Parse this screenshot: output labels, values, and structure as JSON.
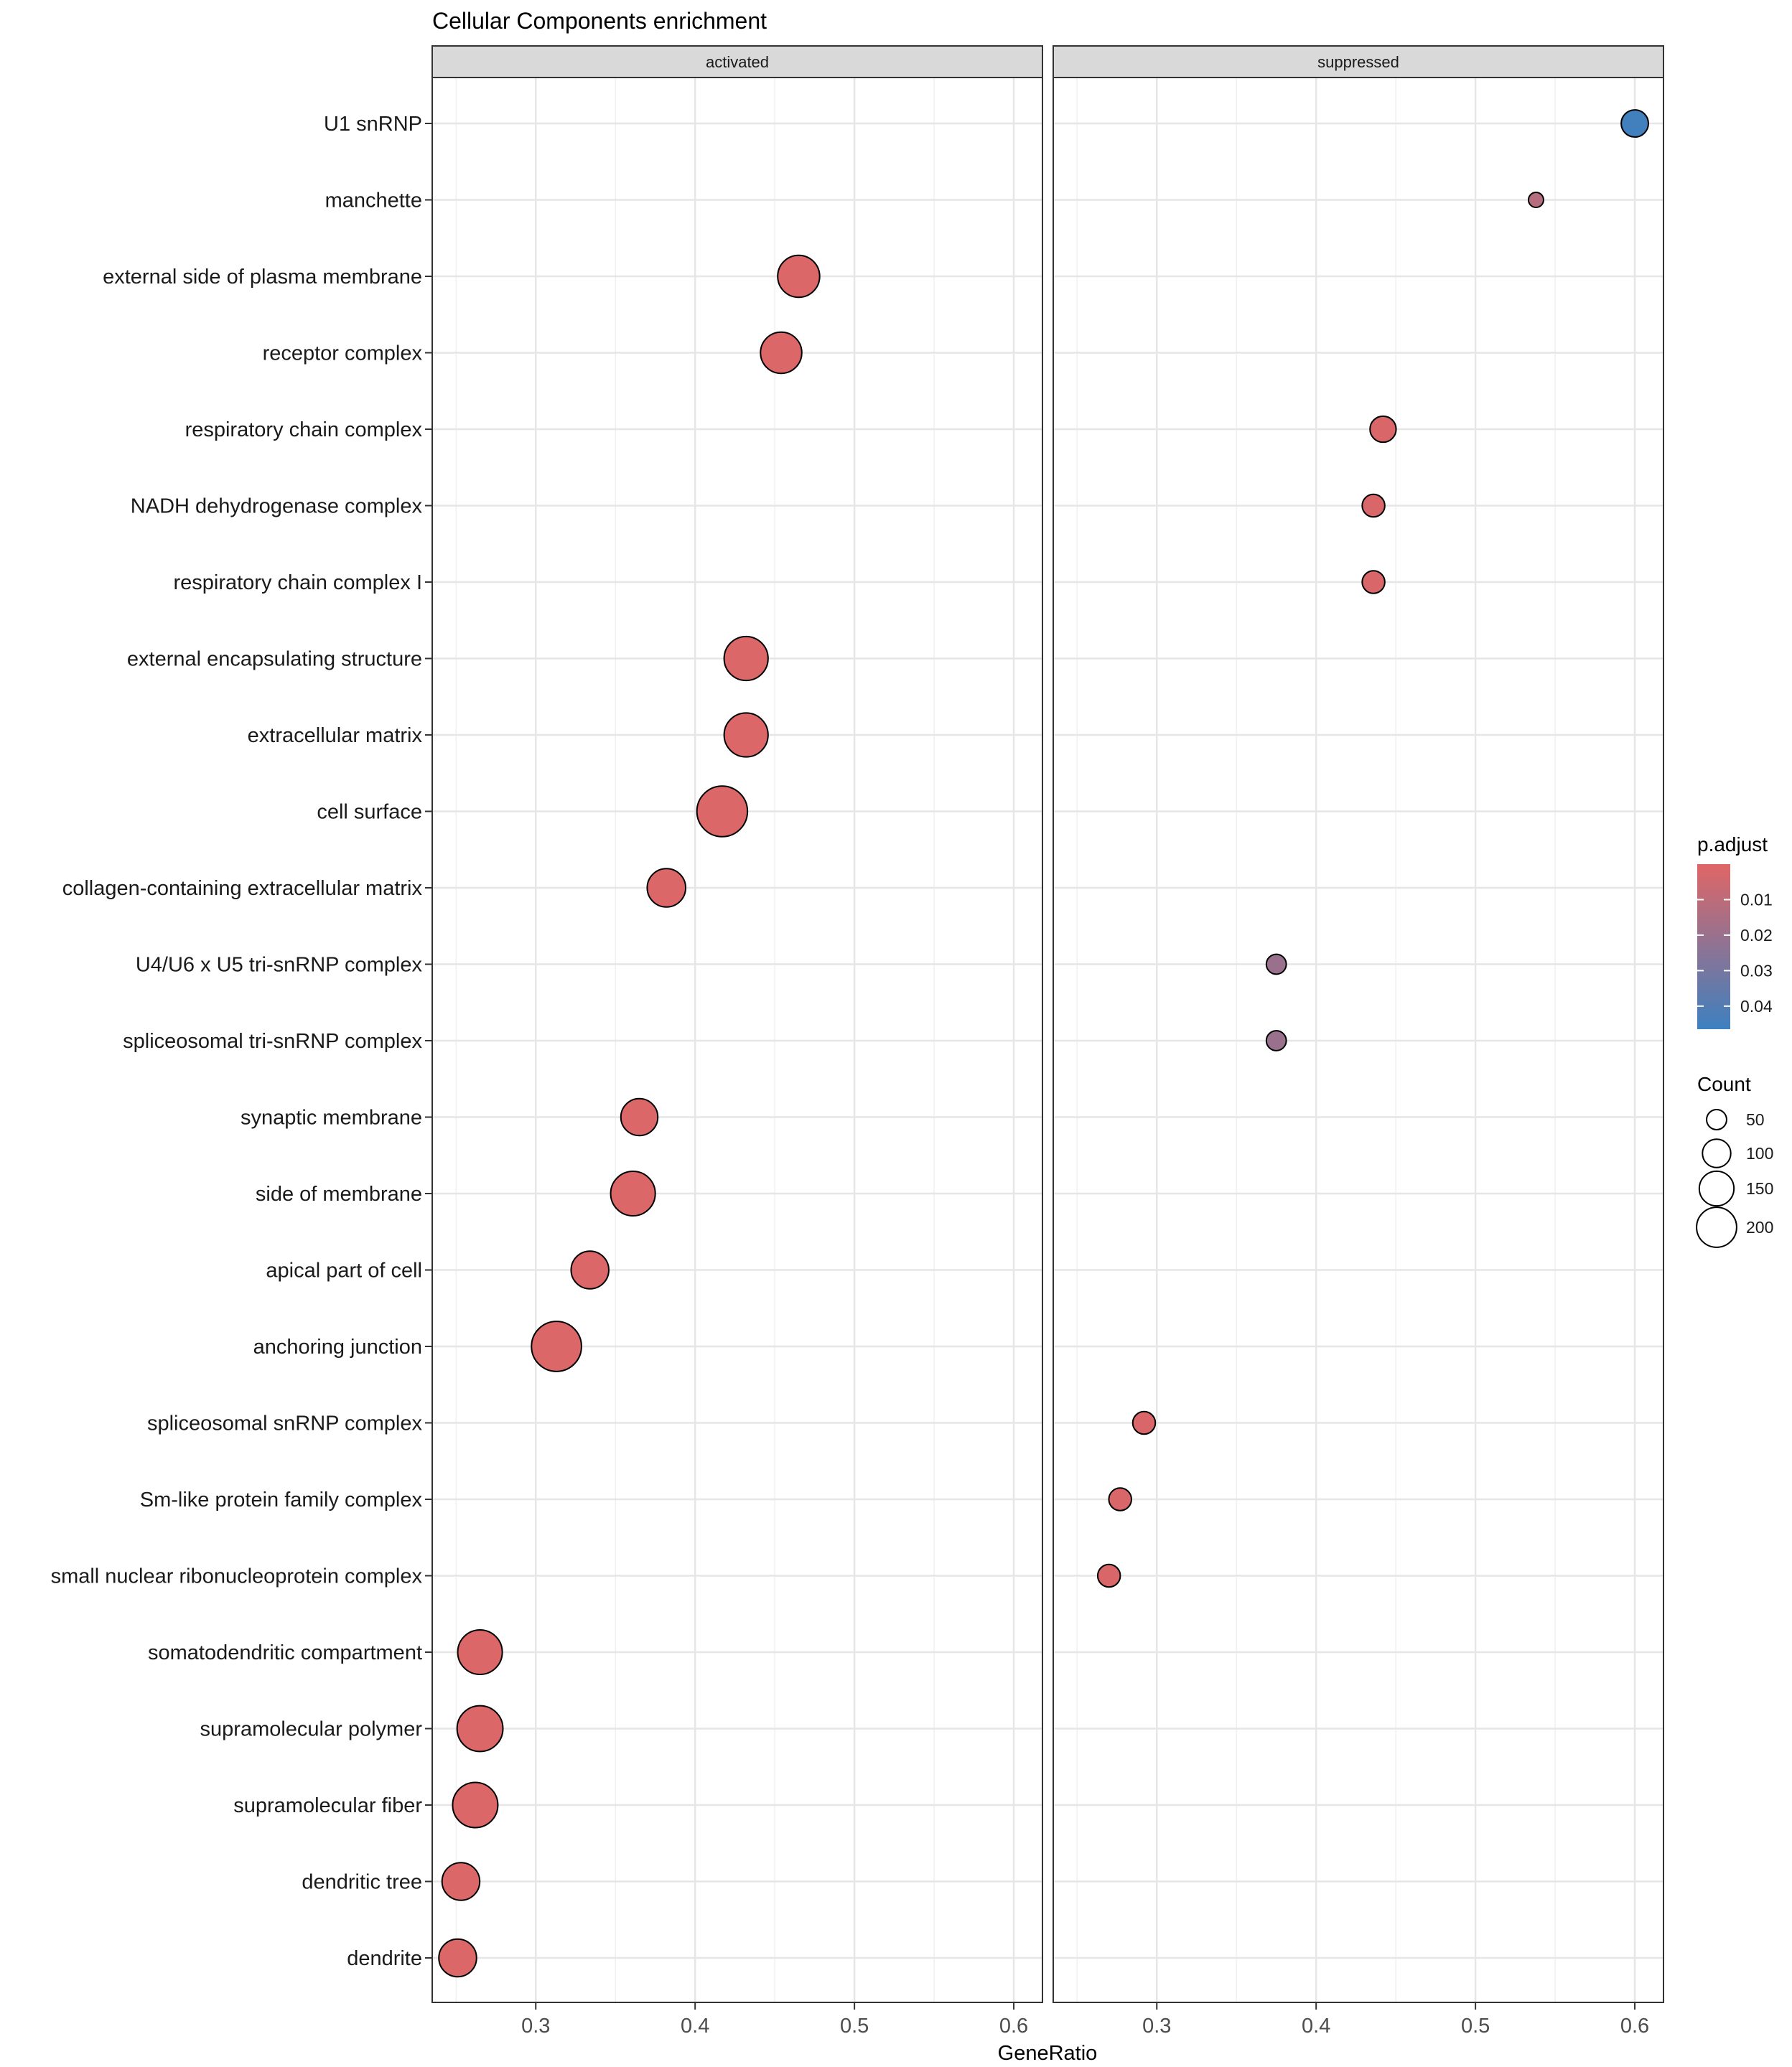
{
  "chart_data": {
    "type": "scatter",
    "title": "Cellular Components enrichment",
    "xlabel": "GeneRatio",
    "ylabel": "",
    "xlim": [
      0.235,
      0.618
    ],
    "x_ticks": [
      0.3,
      0.4,
      0.5,
      0.6
    ],
    "x_tick_labels": [
      "0.3",
      "0.4",
      "0.5",
      "0.6"
    ],
    "grid": true,
    "facets": [
      "activated",
      "suppressed"
    ],
    "categories": [
      "U1 snRNP",
      "manchette",
      "external side of plasma membrane",
      "receptor complex",
      "respiratory chain complex",
      "NADH dehydrogenase complex",
      "respiratory chain complex I",
      "external encapsulating structure",
      "extracellular matrix",
      "cell surface",
      "collagen-containing extracellular matrix",
      "U4/U6 x U5 tri-snRNP complex",
      "spliceosomal tri-snRNP complex",
      "synaptic membrane",
      "side of membrane",
      "apical part of cell",
      "anchoring junction",
      "spliceosomal snRNP complex",
      "Sm-like protein family complex",
      "small nuclear ribonucleoprotein complex",
      "somatodendritic compartment",
      "supramolecular polymer",
      "supramolecular fiber",
      "dendritic tree",
      "dendrite"
    ],
    "points": [
      {
        "facet": "suppressed",
        "category": "U1 snRNP",
        "gene_ratio": 0.6,
        "count": 65,
        "p_adjust": 0.045
      },
      {
        "facet": "suppressed",
        "category": "manchette",
        "gene_ratio": 0.538,
        "count": 20,
        "p_adjust": 0.012
      },
      {
        "facet": "activated",
        "category": "external side of plasma membrane",
        "gene_ratio": 0.465,
        "count": 155,
        "p_adjust": 0.001
      },
      {
        "facet": "activated",
        "category": "receptor complex",
        "gene_ratio": 0.454,
        "count": 150,
        "p_adjust": 0.001
      },
      {
        "facet": "suppressed",
        "category": "respiratory chain complex",
        "gene_ratio": 0.442,
        "count": 60,
        "p_adjust": 0.002
      },
      {
        "facet": "suppressed",
        "category": "NADH dehydrogenase complex",
        "gene_ratio": 0.436,
        "count": 45,
        "p_adjust": 0.002
      },
      {
        "facet": "suppressed",
        "category": "respiratory chain complex I",
        "gene_ratio": 0.436,
        "count": 45,
        "p_adjust": 0.002
      },
      {
        "facet": "activated",
        "category": "external encapsulating structure",
        "gene_ratio": 0.432,
        "count": 170,
        "p_adjust": 0.001
      },
      {
        "facet": "activated",
        "category": "extracellular matrix",
        "gene_ratio": 0.432,
        "count": 170,
        "p_adjust": 0.001
      },
      {
        "facet": "activated",
        "category": "cell surface",
        "gene_ratio": 0.417,
        "count": 225,
        "p_adjust": 0.001
      },
      {
        "facet": "activated",
        "category": "collagen-containing extracellular matrix",
        "gene_ratio": 0.382,
        "count": 130,
        "p_adjust": 0.001
      },
      {
        "facet": "suppressed",
        "category": "U4/U6 x U5 tri-snRNP complex",
        "gene_ratio": 0.375,
        "count": 35,
        "p_adjust": 0.02
      },
      {
        "facet": "suppressed",
        "category": "spliceosomal tri-snRNP complex",
        "gene_ratio": 0.375,
        "count": 35,
        "p_adjust": 0.02
      },
      {
        "facet": "activated",
        "category": "synaptic membrane",
        "gene_ratio": 0.365,
        "count": 120,
        "p_adjust": 0.001
      },
      {
        "facet": "activated",
        "category": "side of membrane",
        "gene_ratio": 0.361,
        "count": 175,
        "p_adjust": 0.001
      },
      {
        "facet": "activated",
        "category": "apical part of cell",
        "gene_ratio": 0.334,
        "count": 125,
        "p_adjust": 0.001
      },
      {
        "facet": "activated",
        "category": "anchoring junction",
        "gene_ratio": 0.313,
        "count": 220,
        "p_adjust": 0.001
      },
      {
        "facet": "suppressed",
        "category": "spliceosomal snRNP complex",
        "gene_ratio": 0.292,
        "count": 45,
        "p_adjust": 0.002
      },
      {
        "facet": "suppressed",
        "category": "Sm-like protein family complex",
        "gene_ratio": 0.277,
        "count": 45,
        "p_adjust": 0.002
      },
      {
        "facet": "suppressed",
        "category": "small nuclear ribonucleoprotein complex",
        "gene_ratio": 0.27,
        "count": 45,
        "p_adjust": 0.002
      },
      {
        "facet": "activated",
        "category": "somatodendritic compartment",
        "gene_ratio": 0.265,
        "count": 175,
        "p_adjust": 0.001
      },
      {
        "facet": "activated",
        "category": "supramolecular polymer",
        "gene_ratio": 0.265,
        "count": 185,
        "p_adjust": 0.001
      },
      {
        "facet": "activated",
        "category": "supramolecular fiber",
        "gene_ratio": 0.262,
        "count": 180,
        "p_adjust": 0.001
      },
      {
        "facet": "activated",
        "category": "dendritic tree",
        "gene_ratio": 0.253,
        "count": 125,
        "p_adjust": 0.001
      },
      {
        "facet": "activated",
        "category": "dendrite",
        "gene_ratio": 0.251,
        "count": 125,
        "p_adjust": 0.001
      }
    ],
    "color_legend": {
      "title": "p.adjust",
      "ticks": [
        0.01,
        0.02,
        0.03,
        0.04
      ],
      "tick_labels": [
        "0.01",
        "0.02",
        "0.03",
        "0.04"
      ],
      "range": [
        0.0,
        0.0465
      ],
      "low_color": "#E06666",
      "high_color": "#3D80C0"
    },
    "size_legend": {
      "title": "Count",
      "values": [
        50,
        100,
        150,
        200
      ],
      "labels": [
        "50",
        "100",
        "150",
        "200"
      ]
    }
  }
}
